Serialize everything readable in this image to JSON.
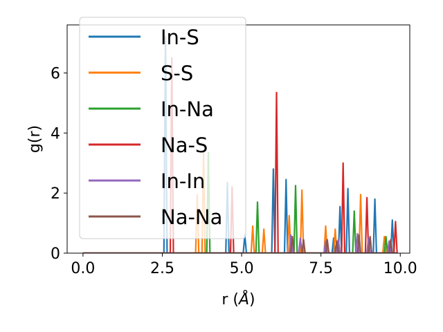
{
  "chart_data": {
    "type": "line",
    "xlabel": "r (",
    "xlabel_unit": "Å",
    "xlabel_close": ")",
    "ylabel": "g(r)",
    "xlim": [
      -0.5,
      10.3
    ],
    "ylim": [
      0,
      7.6
    ],
    "xticks": [
      0.0,
      2.5,
      5.0,
      7.5,
      10.0
    ],
    "xtick_labels": [
      "0.0",
      "2.5",
      "5.0",
      "7.5",
      "10.0"
    ],
    "yticks": [
      0,
      2,
      4,
      6
    ],
    "ytick_labels": [
      "0",
      "2",
      "4",
      "6"
    ],
    "grid": false,
    "legend_position": "upper-left",
    "series": [
      {
        "name": "In-S",
        "color": "#1f77b4",
        "peaks": [
          [
            2.6,
            7.2
          ],
          [
            4.55,
            2.35
          ],
          [
            5.1,
            0.6
          ],
          [
            6.0,
            2.8
          ],
          [
            6.4,
            2.45
          ],
          [
            7.9,
            0.5
          ],
          [
            8.1,
            1.55
          ],
          [
            8.35,
            2.15
          ],
          [
            9.2,
            1.8
          ],
          [
            9.75,
            1.1
          ]
        ]
      },
      {
        "name": "S-S",
        "color": "#ff7f0e",
        "peaks": [
          [
            3.6,
            1.95
          ],
          [
            3.8,
            3.35
          ],
          [
            5.35,
            0.9
          ],
          [
            5.7,
            0.8
          ],
          [
            6.5,
            1.25
          ],
          [
            6.9,
            2.1
          ],
          [
            7.65,
            0.9
          ],
          [
            7.95,
            0.8
          ],
          [
            8.75,
            1.95
          ],
          [
            9.5,
            0.55
          ]
        ]
      },
      {
        "name": "In-Na",
        "color": "#2ca02c",
        "peaks": [
          [
            3.95,
            3.35
          ],
          [
            5.5,
            1.7
          ],
          [
            6.7,
            2.25
          ],
          [
            8.55,
            1.4
          ],
          [
            9.55,
            0.55
          ]
        ]
      },
      {
        "name": "Na-S",
        "color": "#d62728",
        "peaks": [
          [
            2.8,
            6.5
          ],
          [
            4.7,
            2.2
          ],
          [
            6.1,
            5.35
          ],
          [
            8.2,
            3.0
          ],
          [
            8.95,
            1.85
          ],
          [
            9.85,
            1.05
          ]
        ]
      },
      {
        "name": "In-In",
        "color": "#9467bd",
        "peaks": [
          [
            6.55,
            0.6
          ],
          [
            6.85,
            0.5
          ],
          [
            7.65,
            0.4
          ],
          [
            8.05,
            0.45
          ],
          [
            8.65,
            0.65
          ],
          [
            9.0,
            0.5
          ],
          [
            9.65,
            0.4
          ]
        ]
      },
      {
        "name": "Na-Na",
        "color": "#8c564b",
        "peaks": [
          [
            6.6,
            0.55
          ],
          [
            6.95,
            0.45
          ],
          [
            7.7,
            0.45
          ],
          [
            8.0,
            0.4
          ],
          [
            8.7,
            0.6
          ],
          [
            9.05,
            0.55
          ],
          [
            9.7,
            0.45
          ]
        ]
      }
    ]
  }
}
